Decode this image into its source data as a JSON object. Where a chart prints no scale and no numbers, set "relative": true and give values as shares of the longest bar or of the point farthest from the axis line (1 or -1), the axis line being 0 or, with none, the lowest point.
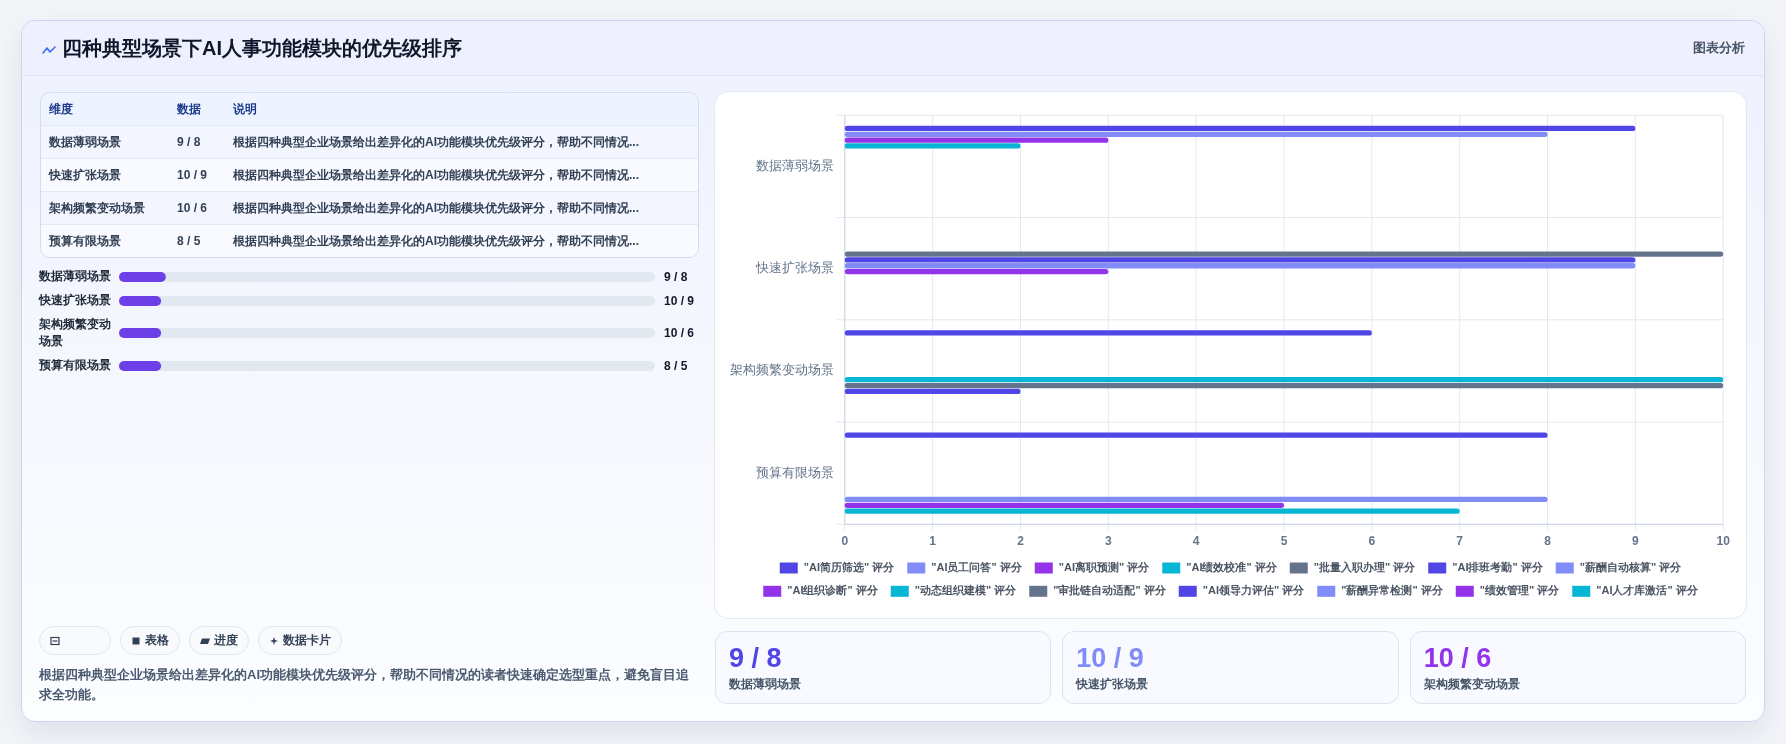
{
  "chart_data": [
    {
      "type": "other",
      "title": "四种典型场景下AI人事功能模块的优先级排序",
      "annotations": [
        "图表分析"
      ]
    },
    {
      "type": "other",
      "annotations": [
        "维度",
        "数据",
        "说明",
        "数据薄弱场景",
        "9 / 8",
        "根据四种典型企业场景给出差异化的AI功能模块优先级评分，帮助不同情况...",
        "快速扩张场景",
        "10 / 9",
        "根据四种典型企业场景给出差异化的AI功能模块优先级评分，帮助不同情况...",
        "架构频繁变动场景",
        "10 / 6",
        "根据四种典型企业场景给出差异化的AI功能模块优先级评分，帮助不同情况...",
        "预算有限场景",
        "8 / 5",
        "根据四种典型企业场景给出差异化的AI功能模块优先级评分，帮助不同情况..."
      ]
    },
    {
      "type": "bar",
      "orientation": "horizontal",
      "relative": true,
      "categories": [
        "数据薄弱场景",
        "快速扩张场景",
        "架构频繁变动场景",
        "预算有限场景"
      ],
      "values": [
        1,
        0.9,
        0.9,
        0.9
      ],
      "annotations": [
        "9 / 8",
        "10 / 9",
        "10 / 6",
        "8 / 5"
      ],
      "color": "#6d3fe7"
    },
    {
      "type": "other",
      "categories": [
        null,
        "表格",
        "进度",
        "数据卡片"
      ],
      "annotations": [
        "根据四种典型企业场景给出差异化的AI功能模块优先级评分，帮助不同情况的读者快速确定选型重点，避免盲目追求全功能。"
      ]
    },
    {
      "type": "bar",
      "orientation": "horizontal",
      "categories": [
        "数据薄弱场景",
        "快速扩张场景",
        "架构频繁变动场景",
        "预算有限场景"
      ],
      "xlim": [
        0,
        10
      ],
      "xticks": [
        0,
        1,
        2,
        3,
        4,
        5,
        6,
        7,
        8,
        9,
        10
      ],
      "grid": true,
      "legend": "bottom",
      "series": [
        {
          "name": "\"AI简历筛选\" 评分",
          "color": "#4f46e5",
          "values": [
            9,
            null,
            6,
            8
          ]
        },
        {
          "name": "\"AI员工问答\" 评分",
          "color": "#818cf8",
          "values": [
            8,
            null,
            null,
            null
          ]
        },
        {
          "name": "\"AI离职预测\" 评分",
          "color": "#9333ea",
          "values": [
            3,
            null,
            null,
            null
          ]
        },
        {
          "name": "\"AI绩效校准\" 评分",
          "color": "#06b6d4",
          "values": [
            2,
            null,
            null,
            null
          ]
        },
        {
          "name": "\"批量入职办理\" 评分",
          "color": "#64748b",
          "values": [
            null,
            10,
            null,
            null
          ]
        },
        {
          "name": "\"AI排班考勤\" 评分",
          "color": "#4f46e5",
          "values": [
            null,
            9,
            null,
            null
          ]
        },
        {
          "name": "\"薪酬自动核算\" 评分",
          "color": "#818cf8",
          "values": [
            null,
            9,
            null,
            null
          ]
        },
        {
          "name": "\"AI组织诊断\" 评分",
          "color": "#9333ea",
          "values": [
            null,
            3,
            null,
            null
          ]
        },
        {
          "name": "\"动态组织建模\" 评分",
          "color": "#06b6d4",
          "values": [
            null,
            null,
            10,
            null
          ]
        },
        {
          "name": "\"审批链自动适配\" 评分",
          "color": "#64748b",
          "values": [
            null,
            null,
            10,
            null
          ]
        },
        {
          "name": "\"AI领导力评估\" 评分",
          "color": "#4f46e5",
          "values": [
            null,
            null,
            2,
            null
          ]
        },
        {
          "name": "\"薪酬异常检测\" 评分",
          "color": "#818cf8",
          "values": [
            null,
            null,
            null,
            8
          ]
        },
        {
          "name": "\"绩效管理\" 评分",
          "color": "#9333ea",
          "values": [
            null,
            null,
            null,
            5
          ]
        },
        {
          "name": "\"AI人才库激活\" 评分",
          "color": "#06b6d4",
          "values": [
            null,
            null,
            null,
            7
          ]
        }
      ]
    },
    {
      "type": "other",
      "categories": [
        "数据薄弱场景",
        "快速扩张场景",
        "架构频繁变动场景"
      ],
      "value_labels": [
        "9 / 8",
        "10 / 9",
        "10 / 6"
      ]
    }
  ]
}
